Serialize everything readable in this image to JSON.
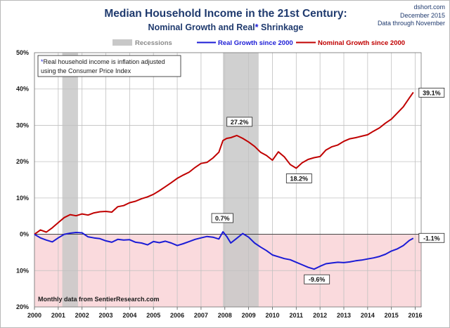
{
  "header": {
    "title_line1": "Median Household Income in the 21st Century:",
    "title_line2_a": "Nominal  Growth  and Real",
    "title_line2_star": "*",
    "title_line2_b": " Shrinkage",
    "source_line1": "dshort.com",
    "source_line2": "December 2015",
    "source_line3": "Data through November"
  },
  "chart_data": {
    "type": "line",
    "title": "Median Household Income in the 21st Century: Nominal Growth and Real* Shrinkage",
    "xlabel": "",
    "ylabel": "",
    "xlim": [
      2000,
      2016.25
    ],
    "ylim": [
      -20,
      50
    ],
    "x_ticks": [
      "2000",
      "2001",
      "2002",
      "2003",
      "2004",
      "2005",
      "2006",
      "2007",
      "2008",
      "2009",
      "2010",
      "2011",
      "2012",
      "2013",
      "2014",
      "2015",
      "2016"
    ],
    "y_ticks": [
      {
        "value": 50,
        "label": "50%"
      },
      {
        "value": 40,
        "label": "40%"
      },
      {
        "value": 30,
        "label": "30%"
      },
      {
        "value": 20,
        "label": "20%"
      },
      {
        "value": 10,
        "label": "10%"
      },
      {
        "value": 0,
        "label": "0%"
      },
      {
        "value": -10,
        "label": "10%"
      },
      {
        "value": -20,
        "label": "20%"
      }
    ],
    "negative_region_color": "#fadadd",
    "recessions": [
      {
        "start": 2001.17,
        "end": 2001.83
      },
      {
        "start": 2007.92,
        "end": 2009.42
      }
    ],
    "legend": [
      {
        "key": "recessions",
        "label": "Recessions",
        "color": "#c8c8c8"
      },
      {
        "key": "real",
        "label": "Real Growth since 2000",
        "color": "#1b1bd6"
      },
      {
        "key": "nominal",
        "label": "Nominal Growth since 2000",
        "color": "#c00000"
      }
    ],
    "series": [
      {
        "name": "Nominal Growth since 2000",
        "color": "#c00000",
        "x": [
          2000.0,
          2000.25,
          2000.5,
          2000.75,
          2001.0,
          2001.25,
          2001.5,
          2001.75,
          2002.0,
          2002.25,
          2002.5,
          2002.75,
          2003.0,
          2003.25,
          2003.5,
          2003.75,
          2004.0,
          2004.25,
          2004.5,
          2004.75,
          2005.0,
          2005.25,
          2005.5,
          2005.75,
          2006.0,
          2006.25,
          2006.5,
          2006.75,
          2007.0,
          2007.25,
          2007.5,
          2007.75,
          2007.92,
          2008.08,
          2008.25,
          2008.5,
          2008.75,
          2009.0,
          2009.25,
          2009.5,
          2009.75,
          2010.0,
          2010.25,
          2010.5,
          2010.75,
          2011.0,
          2011.25,
          2011.5,
          2011.75,
          2012.0,
          2012.25,
          2012.5,
          2012.75,
          2013.0,
          2013.25,
          2013.5,
          2013.75,
          2014.0,
          2014.25,
          2014.5,
          2014.75,
          2015.0,
          2015.25,
          2015.5,
          2015.75,
          2015.92
        ],
        "values": [
          0,
          1.2,
          0.6,
          1.8,
          3.2,
          4.6,
          5.4,
          5.1,
          5.6,
          5.3,
          5.9,
          6.2,
          6.3,
          6.1,
          7.6,
          7.9,
          8.7,
          9.1,
          9.8,
          10.3,
          11.0,
          12.0,
          13.1,
          14.2,
          15.4,
          16.3,
          17.1,
          18.4,
          19.5,
          19.8,
          21.0,
          22.6,
          25.8,
          26.4,
          26.6,
          27.2,
          26.4,
          25.4,
          24.2,
          22.6,
          21.7,
          20.4,
          22.7,
          21.3,
          19.2,
          18.2,
          19.7,
          20.6,
          21.1,
          21.4,
          23.2,
          24.1,
          24.6,
          25.6,
          26.3,
          26.6,
          27.0,
          27.4,
          28.4,
          29.3,
          30.6,
          31.7,
          33.4,
          35.1,
          37.5,
          39.1
        ]
      },
      {
        "name": "Real Growth since 2000",
        "color": "#1b1bd6",
        "x": [
          2000.0,
          2000.25,
          2000.5,
          2000.75,
          2001.0,
          2001.25,
          2001.5,
          2001.75,
          2002.0,
          2002.25,
          2002.5,
          2002.75,
          2003.0,
          2003.25,
          2003.5,
          2003.75,
          2004.0,
          2004.25,
          2004.5,
          2004.75,
          2005.0,
          2005.25,
          2005.5,
          2005.75,
          2006.0,
          2006.25,
          2006.5,
          2006.75,
          2007.0,
          2007.25,
          2007.5,
          2007.75,
          2007.92,
          2008.08,
          2008.25,
          2008.5,
          2008.75,
          2009.0,
          2009.25,
          2009.5,
          2009.75,
          2010.0,
          2010.25,
          2010.5,
          2010.75,
          2011.0,
          2011.25,
          2011.5,
          2011.75,
          2012.0,
          2012.25,
          2012.5,
          2012.75,
          2013.0,
          2013.25,
          2013.5,
          2013.75,
          2014.0,
          2014.25,
          2014.5,
          2014.75,
          2015.0,
          2015.25,
          2015.5,
          2015.75,
          2015.92
        ],
        "values": [
          0,
          -1.0,
          -1.6,
          -2.1,
          -1.0,
          0.0,
          0.3,
          0.5,
          0.4,
          -0.7,
          -1.0,
          -1.2,
          -1.8,
          -2.2,
          -1.4,
          -1.6,
          -1.5,
          -2.2,
          -2.4,
          -2.9,
          -2.0,
          -2.3,
          -1.9,
          -2.4,
          -3.1,
          -2.6,
          -2.0,
          -1.4,
          -1.0,
          -0.6,
          -0.8,
          -1.3,
          0.7,
          -0.6,
          -2.4,
          -1.1,
          0.2,
          -0.8,
          -2.4,
          -3.5,
          -4.5,
          -5.7,
          -6.2,
          -6.7,
          -7.0,
          -7.7,
          -8.4,
          -9.1,
          -9.6,
          -8.8,
          -8.1,
          -7.9,
          -7.7,
          -7.8,
          -7.6,
          -7.3,
          -7.1,
          -6.8,
          -6.5,
          -6.1,
          -5.5,
          -4.6,
          -4.0,
          -3.1,
          -1.7,
          -1.1
        ]
      }
    ],
    "annotations": [
      {
        "text": "27.2%",
        "x": 2008.5,
        "y": 27.2
      },
      {
        "text": "18.2%",
        "x": 2011.0,
        "y": 18.2
      },
      {
        "text": "39.1%",
        "x": 2015.92,
        "y": 39.1
      },
      {
        "text": "0.7%",
        "x": 2007.92,
        "y": 0.7
      },
      {
        "text": "-9.6%",
        "x": 2011.75,
        "y": -9.6
      },
      {
        "text": "-1.1%",
        "x": 2015.92,
        "y": -1.1
      }
    ],
    "footnote_line1": "*Real household  income is inflation adjusted",
    "footnote_line2": "using  the Consumer Price Index",
    "footnote_star": "*",
    "source_note": "Monthly data from SentierResearch.com"
  },
  "colors": {
    "title": "#1f3a6e",
    "nominal": "#c00000",
    "real": "#1b1bd6",
    "recession": "#c8c8c8",
    "negative_fill": "#fadadd",
    "grid": "#c0c0c0"
  }
}
